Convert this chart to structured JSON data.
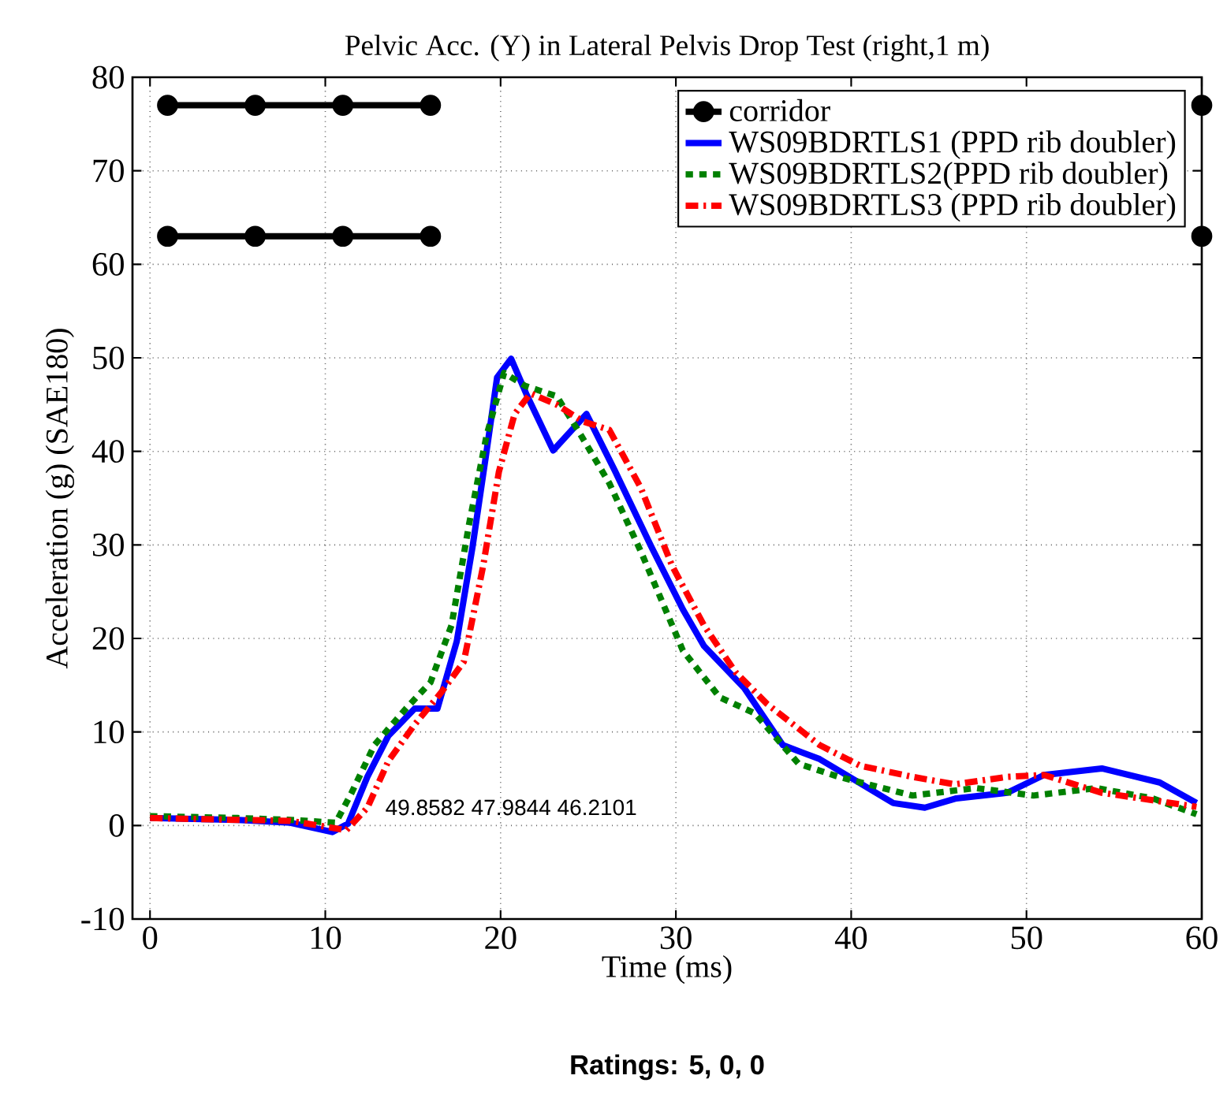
{
  "chart_data": {
    "type": "line",
    "title": "Pelvic Acc. (Y) in Lateral Pelvis Drop Test (right,1 m)",
    "xlabel": "Time (ms)",
    "ylabel": "Acceleration (g) (SAE180)",
    "xlim": [
      -1,
      60
    ],
    "ylim": [
      -10,
      80
    ],
    "xticks": [
      0,
      10,
      20,
      30,
      40,
      50,
      60
    ],
    "yticks": [
      -10,
      0,
      10,
      20,
      30,
      40,
      50,
      60,
      70,
      80
    ],
    "grid": true,
    "legend": "top right",
    "annotations": [
      "49.8582   47.9844   46.2101",
      "Ratings: 5, 0, 0"
    ],
    "series": [
      {
        "name": "corridor",
        "color": "#000000",
        "marker": "circle",
        "line_style": "solid",
        "x": [
          1,
          6,
          11,
          16,
          21,
          26,
          31,
          36,
          41,
          46,
          51,
          56,
          60
        ],
        "values": [
          77,
          77,
          77,
          77,
          null,
          null,
          null,
          null,
          null,
          null,
          null,
          null,
          77
        ]
      },
      {
        "color": "#000000",
        "marker": "circle",
        "line_style": "solid",
        "x": [
          1,
          6,
          11,
          16,
          21,
          26,
          31,
          36,
          41,
          46,
          51,
          56,
          60
        ],
        "values": [
          63,
          63,
          63,
          63,
          null,
          null,
          null,
          null,
          null,
          null,
          null,
          null,
          63
        ]
      },
      {
        "name": "WS09BDRTLS1 (PPD rib doubler)",
        "color": "#0000ff",
        "marker": "none",
        "line_style": "solid",
        "x": [
          0,
          5,
          8,
          10.4,
          11.3,
          12.4,
          13.6,
          15.1,
          16.4,
          17.5,
          18.4,
          19.2,
          19.8,
          20.6,
          21.5,
          23.0,
          24.9,
          26.5,
          28.6,
          30.4,
          31.6,
          33.9,
          36.1,
          38.2,
          39.9,
          42.4,
          44.2,
          46,
          48.9,
          51,
          54.3,
          57.6,
          59.7
        ],
        "values": [
          0.8,
          0.6,
          0.3,
          -0.7,
          0.2,
          5.2,
          9.6,
          12.5,
          12.5,
          19.7,
          29.8,
          40,
          47.9,
          49.9,
          46,
          40.1,
          44,
          38,
          29.8,
          23.1,
          19.2,
          14.7,
          8.6,
          7.1,
          5.2,
          2.4,
          1.9,
          2.9,
          3.5,
          5.4,
          6.1,
          4.6,
          2.4
        ]
      },
      {
        "name": "WS09BDRTLS2(PPD rib doubler)",
        "color": "#008000",
        "marker": "none",
        "line_style": "dotted",
        "x": [
          0,
          5,
          8,
          10.6,
          11.5,
          12.8,
          14.6,
          16,
          17.2,
          18.2,
          19.2,
          20.2,
          21.4,
          23.2,
          24.4,
          26.2,
          28,
          30.4,
          32.5,
          34.5,
          37,
          39.3,
          43.5,
          47.1,
          50.4,
          54,
          57.2,
          59.7
        ],
        "values": [
          1.0,
          0.8,
          0.6,
          0.3,
          3.5,
          8.6,
          12.5,
          15.3,
          21.4,
          32.2,
          41.7,
          48.4,
          47,
          45.9,
          42.3,
          36.6,
          29.3,
          18.7,
          13.7,
          12,
          6.6,
          5.2,
          3.2,
          4,
          3.2,
          4,
          2.9,
          1.2
        ]
      },
      {
        "name": "WS09BDRTLS3 (PPD rib doubler)",
        "color": "#ff0000",
        "marker": "none",
        "line_style": "dashed",
        "x": [
          0,
          5,
          8,
          11.2,
          12.4,
          13.6,
          15.1,
          16.6,
          17.9,
          19,
          19.9,
          20.8,
          21.7,
          23.2,
          24.7,
          26.2,
          28,
          29.8,
          31.6,
          33.4,
          35.2,
          38.2,
          40.5,
          43.5,
          45.9,
          48.9,
          51,
          54.3,
          57.2,
          59.7
        ],
        "values": [
          0.8,
          0.6,
          0.5,
          -0.5,
          1.9,
          6.9,
          10.8,
          14.2,
          17.5,
          27.7,
          37.8,
          44,
          46.2,
          45,
          43.2,
          42.3,
          36.1,
          27.7,
          21.4,
          16.4,
          13,
          8.6,
          6.4,
          5.2,
          4.4,
          5.2,
          5.4,
          3.5,
          2.7,
          2.0
        ]
      }
    ]
  }
}
